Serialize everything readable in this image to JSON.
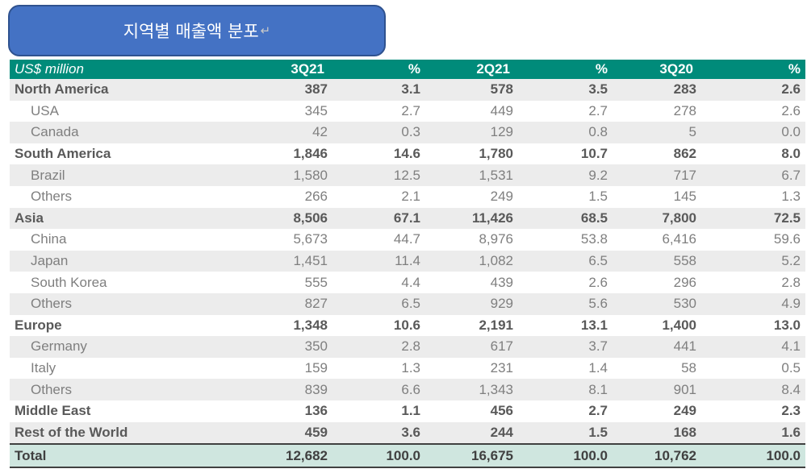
{
  "title": "지역별 매출액 분포",
  "title_mark": "↵",
  "header": [
    "US$ million",
    "3Q21",
    "%",
    "2Q21",
    "%",
    "3Q20",
    "%"
  ],
  "rows": [
    {
      "label": "North America",
      "type": "region",
      "shaded": true,
      "values": [
        "387",
        "3.1",
        "578",
        "3.5",
        "283",
        "2.6"
      ]
    },
    {
      "label": "USA",
      "type": "sub",
      "shaded": false,
      "values": [
        "345",
        "2.7",
        "449",
        "2.7",
        "278",
        "2.6"
      ]
    },
    {
      "label": "Canada",
      "type": "sub",
      "shaded": true,
      "values": [
        "42",
        "0.3",
        "129",
        "0.8",
        "5",
        "0.0"
      ]
    },
    {
      "label": "South America",
      "type": "region",
      "shaded": false,
      "values": [
        "1,846",
        "14.6",
        "1,780",
        "10.7",
        "862",
        "8.0"
      ]
    },
    {
      "label": "Brazil",
      "type": "sub",
      "shaded": true,
      "values": [
        "1,580",
        "12.5",
        "1,531",
        "9.2",
        "717",
        "6.7"
      ]
    },
    {
      "label": "Others",
      "type": "sub",
      "shaded": false,
      "values": [
        "266",
        "2.1",
        "249",
        "1.5",
        "145",
        "1.3"
      ]
    },
    {
      "label": "Asia",
      "type": "region",
      "shaded": true,
      "values": [
        "8,506",
        "67.1",
        "11,426",
        "68.5",
        "7,800",
        "72.5"
      ]
    },
    {
      "label": "China",
      "type": "sub",
      "shaded": false,
      "values": [
        "5,673",
        "44.7",
        "8,976",
        "53.8",
        "6,416",
        "59.6"
      ]
    },
    {
      "label": "Japan",
      "type": "sub",
      "shaded": true,
      "values": [
        "1,451",
        "11.4",
        "1,082",
        "6.5",
        "558",
        "5.2"
      ]
    },
    {
      "label": "South Korea",
      "type": "sub",
      "shaded": false,
      "values": [
        "555",
        "4.4",
        "439",
        "2.6",
        "296",
        "2.8"
      ]
    },
    {
      "label": "Others",
      "type": "sub",
      "shaded": true,
      "values": [
        "827",
        "6.5",
        "929",
        "5.6",
        "530",
        "4.9"
      ]
    },
    {
      "label": "Europe",
      "type": "region",
      "shaded": false,
      "values": [
        "1,348",
        "10.6",
        "2,191",
        "13.1",
        "1,400",
        "13.0"
      ]
    },
    {
      "label": "Germany",
      "type": "sub",
      "shaded": true,
      "values": [
        "350",
        "2.8",
        "617",
        "3.7",
        "441",
        "4.1"
      ]
    },
    {
      "label": "Italy",
      "type": "sub",
      "shaded": false,
      "values": [
        "159",
        "1.3",
        "231",
        "1.4",
        "58",
        "0.5"
      ]
    },
    {
      "label": "Others",
      "type": "sub",
      "shaded": true,
      "values": [
        "839",
        "6.6",
        "1,343",
        "8.1",
        "901",
        "8.4"
      ]
    },
    {
      "label": "Middle East",
      "type": "region",
      "shaded": false,
      "values": [
        "136",
        "1.1",
        "456",
        "2.7",
        "249",
        "2.3"
      ]
    },
    {
      "label": "Rest of the World",
      "type": "region",
      "shaded": true,
      "values": [
        "459",
        "3.6",
        "244",
        "1.5",
        "168",
        "1.6"
      ]
    }
  ],
  "total": {
    "label": "Total",
    "values": [
      "12,682",
      "100.0",
      "16,675",
      "100.0",
      "10,762",
      "100.0"
    ]
  },
  "colors": {
    "header": "#008b7a",
    "title_box": "#4472c4",
    "total_row": "#cfe6df",
    "shaded_row": "#ececec"
  }
}
